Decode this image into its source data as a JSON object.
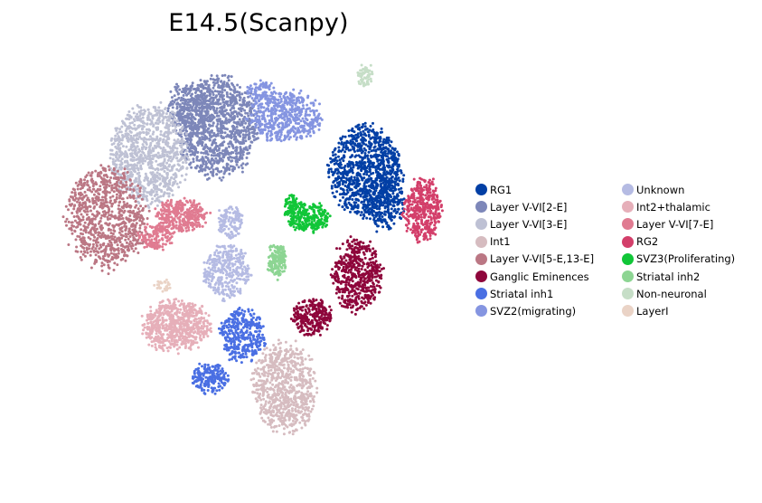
{
  "chart_data": {
    "type": "scatter",
    "title": "E14.5(Scanpy)",
    "xlabel": "",
    "ylabel": "",
    "grid": false,
    "axes_visible": false,
    "legend_placement": "right",
    "series": [
      {
        "name": "RG1",
        "color": "#023fa5",
        "clusters": [
          [
            405,
            190,
            40,
            50,
            950
          ],
          [
            425,
            225,
            22,
            30,
            240
          ]
        ]
      },
      {
        "name": "Layer V-VI[2-E]",
        "color": "#7d87b9",
        "clusters": [
          [
            240,
            140,
            45,
            55,
            1100
          ],
          [
            212,
            118,
            28,
            28,
            260
          ]
        ]
      },
      {
        "name": "Layer V-VI[3-E]",
        "color": "#bec1d4",
        "clusters": [
          [
            165,
            170,
            42,
            55,
            950
          ]
        ]
      },
      {
        "name": "Int1",
        "color": "#d6bcc0",
        "clusters": [
          [
            315,
            428,
            35,
            50,
            750
          ]
        ]
      },
      {
        "name": "Layer V-VI[5-E,13-E]",
        "color": "#bb7784",
        "clusters": [
          [
            118,
            240,
            45,
            55,
            850
          ]
        ]
      },
      {
        "name": "Ganglic Eminences",
        "color": "#8e063b",
        "clusters": [
          [
            395,
            305,
            28,
            40,
            520
          ],
          [
            345,
            350,
            22,
            20,
            260
          ]
        ]
      },
      {
        "name": "Striatal inh1",
        "color": "#4a6fe3",
        "clusters": [
          [
            268,
            370,
            25,
            30,
            360
          ],
          [
            232,
            418,
            20,
            16,
            190
          ]
        ]
      },
      {
        "name": "SVZ2(migrating)",
        "color": "#8595e1",
        "clusters": [
          [
            315,
            128,
            40,
            28,
            520
          ],
          [
            290,
            100,
            18,
            10,
            80
          ]
        ]
      },
      {
        "name": "Unknown",
        "color": "#b5bbe3",
        "clusters": [
          [
            250,
            300,
            25,
            30,
            330
          ],
          [
            255,
            245,
            15,
            18,
            120
          ]
        ]
      },
      {
        "name": "Int2+thalamic",
        "color": "#e6afb9",
        "clusters": [
          [
            195,
            360,
            38,
            28,
            650
          ]
        ]
      },
      {
        "name": "Layer V-VI[7-E]",
        "color": "#e07b91",
        "clusters": [
          [
            200,
            238,
            28,
            18,
            320
          ],
          [
            172,
            262,
            18,
            14,
            160
          ]
        ]
      },
      {
        "name": "RG2",
        "color": "#d33f6a",
        "clusters": [
          [
            468,
            232,
            20,
            35,
            420
          ]
        ]
      },
      {
        "name": "SVZ3(Proliferating)",
        "color": "#11c638",
        "clusters": [
          [
            340,
            240,
            25,
            16,
            280
          ],
          [
            322,
            225,
            7,
            10,
            60
          ]
        ]
      },
      {
        "name": "Striatal inh2",
        "color": "#8dd593",
        "clusters": [
          [
            306,
            287,
            10,
            18,
            160
          ]
        ]
      },
      {
        "name": "Non-neuronal",
        "color": "#c6dec7",
        "clusters": [
          [
            405,
            85,
            8,
            14,
            60
          ]
        ]
      },
      {
        "name": "LayerI",
        "color": "#ead3c6",
        "clusters": [
          [
            180,
            315,
            10,
            6,
            30
          ]
        ]
      }
    ]
  }
}
